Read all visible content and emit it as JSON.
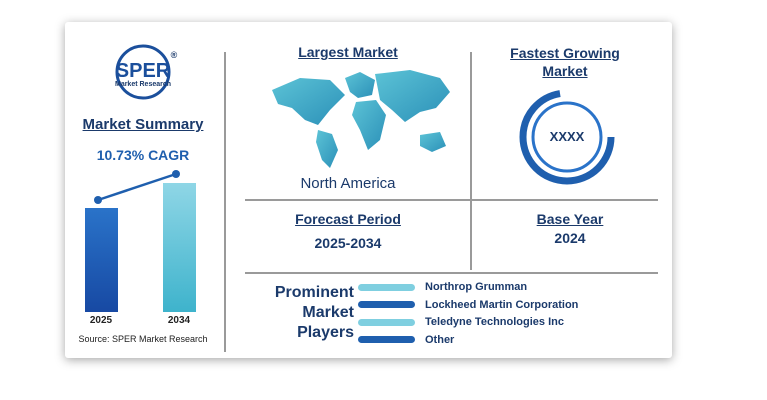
{
  "logo": {
    "name": "SPER",
    "subtitle": "Market Research",
    "mark": "®"
  },
  "summary": {
    "title": "Market Summary",
    "cagr": "10.73% CAGR",
    "years": [
      "2025",
      "2034"
    ],
    "source": "Source: SPER Market Research"
  },
  "largest_market": {
    "title": "Largest Market",
    "value": "North America"
  },
  "fastest_growing": {
    "title": "Fastest Growing Market",
    "value": "XXXX"
  },
  "forecast": {
    "title": "Forecast Period",
    "value": "2025-2034"
  },
  "base_year": {
    "title": "Base Year",
    "value": "2024"
  },
  "players": {
    "title": "Prominent Market Players",
    "items": [
      "Northrop Grumman",
      "Lockheed Martin Corporation",
      "Teledyne Technologies Inc",
      "Other"
    ]
  }
}
